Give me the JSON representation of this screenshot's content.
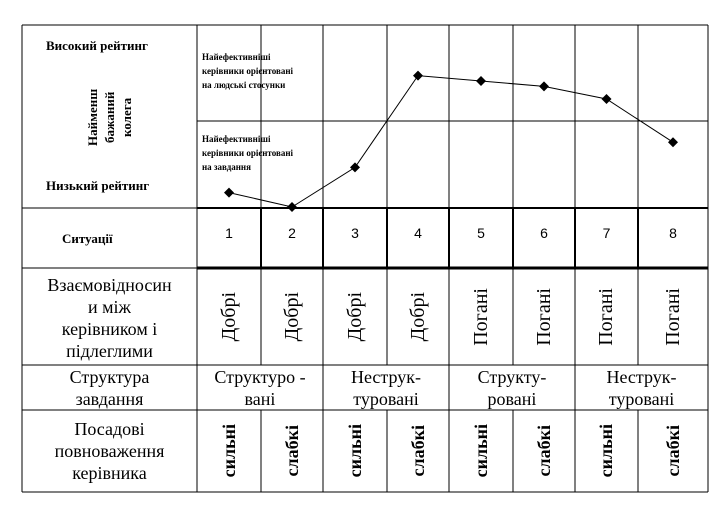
{
  "left_labels": {
    "high_rating": "Високий рейтинг",
    "low_rating": "Низький рейтинг",
    "lpc_axis": [
      "Найменш",
      "бажаний",
      "колега"
    ],
    "situations": "Ситуації"
  },
  "annotations": {
    "relationship_oriented": [
      "Найефективніші",
      "керівники орієнтовані",
      "на людські стосунки"
    ],
    "task_oriented": [
      "Найефективніші",
      "керівники орієнтовані",
      "на завдання"
    ]
  },
  "chart_data": {
    "type": "line",
    "categories": [
      "1",
      "2",
      "3",
      "4",
      "5",
      "6",
      "7",
      "8"
    ],
    "y_scale": "qualitative: low rating (0) to high rating (1)",
    "values": [
      0.08,
      0.0,
      0.22,
      0.73,
      0.7,
      0.67,
      0.6,
      0.36
    ],
    "marker": "diamond",
    "color": "#000000"
  },
  "table": {
    "rows": [
      {
        "label": [
          "Взаємовідносин",
          "и між",
          "керівником і",
          "підлеглими"
        ],
        "cells": [
          "Добрі",
          "Добрі",
          "Добрі",
          "Добрі",
          "Погані",
          "Погані",
          "Погані",
          "Погані"
        ]
      },
      {
        "label": [
          "Структура",
          "завдання"
        ],
        "cells": [
          [
            "Структуро -",
            "вані"
          ],
          [
            "Неструк-",
            "туровані"
          ],
          [
            "Структу-",
            "ровані"
          ],
          [
            "Неструк-",
            "туровані"
          ]
        ]
      },
      {
        "label": [
          "Посадові",
          "повноваження",
          "керівника"
        ],
        "cells": [
          "сильні",
          "слабкі",
          "сильні",
          "слабкі",
          "сильні",
          "слабкі",
          "сильні",
          "слабкі"
        ]
      }
    ]
  }
}
